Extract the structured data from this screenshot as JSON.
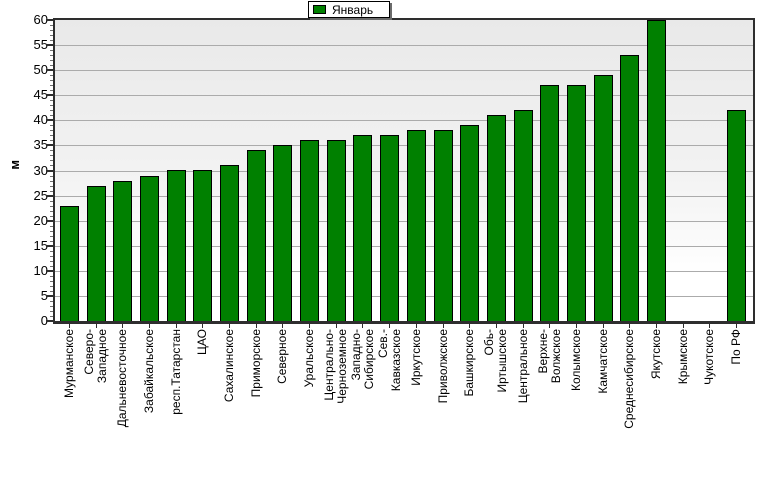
{
  "chart_data": {
    "type": "bar",
    "title": "",
    "legend": {
      "label": "Январь",
      "swatch_color": "#008000",
      "position": "top-center"
    },
    "ylabel": "м",
    "ylim": [
      0,
      60
    ],
    "ytick_step": 5,
    "ytick_labels": [
      "0",
      "5",
      "10",
      "15",
      "20",
      "25",
      "30",
      "35",
      "40",
      "45",
      "50",
      "55",
      "60"
    ],
    "grid": true,
    "categories": [
      "Мурманское",
      "Северо-Западное",
      "Дальневосточное",
      "Забайкальское",
      "респ.Татарстан",
      "ЦАО",
      "Сахалинское",
      "Приморское",
      "Северное",
      "Уральское",
      "Центрально-Черноземное",
      "Западно-Сибирское",
      "Сев.-Кавказское",
      "Иркутское",
      "Приволжское",
      "Башкирское",
      "Обь-Иртышское",
      "Центральное",
      "Верхне-Волжское",
      "Колымское",
      "Камчатское",
      "Среднесибирское",
      "Якутское",
      "Крымское",
      "Чукотское",
      "По РФ"
    ],
    "category_label_lines": [
      [
        "Мурманское"
      ],
      [
        "Северо-",
        "Западное"
      ],
      [
        "Дальневосточное"
      ],
      [
        "Забайкальское"
      ],
      [
        "респ.Татарстан"
      ],
      [
        "ЦАО"
      ],
      [
        "Сахалинское"
      ],
      [
        "Приморское"
      ],
      [
        "Северное"
      ],
      [
        "Уральское"
      ],
      [
        "Центрально-",
        "Черноземное"
      ],
      [
        "Западно-",
        "Сибирское"
      ],
      [
        "Сев.-",
        "Кавказское"
      ],
      [
        "Иркутское"
      ],
      [
        "Приволжское"
      ],
      [
        "Башкирское"
      ],
      [
        "Обь-",
        "Иртышское"
      ],
      [
        "Центральное"
      ],
      [
        "Верхне-",
        "Волжское"
      ],
      [
        "Колымское"
      ],
      [
        "Камчатское"
      ],
      [
        "Среднесибирское"
      ],
      [
        "Якутское"
      ],
      [
        "Крымское"
      ],
      [
        "Чукотское"
      ],
      [
        "По РФ"
      ]
    ],
    "values": [
      23,
      27,
      28,
      29,
      30,
      30,
      31,
      34,
      35,
      36,
      36,
      37,
      37,
      38,
      38,
      39,
      41,
      42,
      47,
      47,
      49,
      53,
      60,
      null,
      null,
      42
    ],
    "colors": {
      "bar_fill": "#008000",
      "bar_border": "#000000",
      "gridline": "#ababab",
      "axis": "#2e2e2e",
      "plot_bg_top": "#e9e9e9",
      "plot_bg_mid": "#f2f2f2",
      "plot_bg_bottom": "#ffffff",
      "text": "#000000"
    }
  }
}
